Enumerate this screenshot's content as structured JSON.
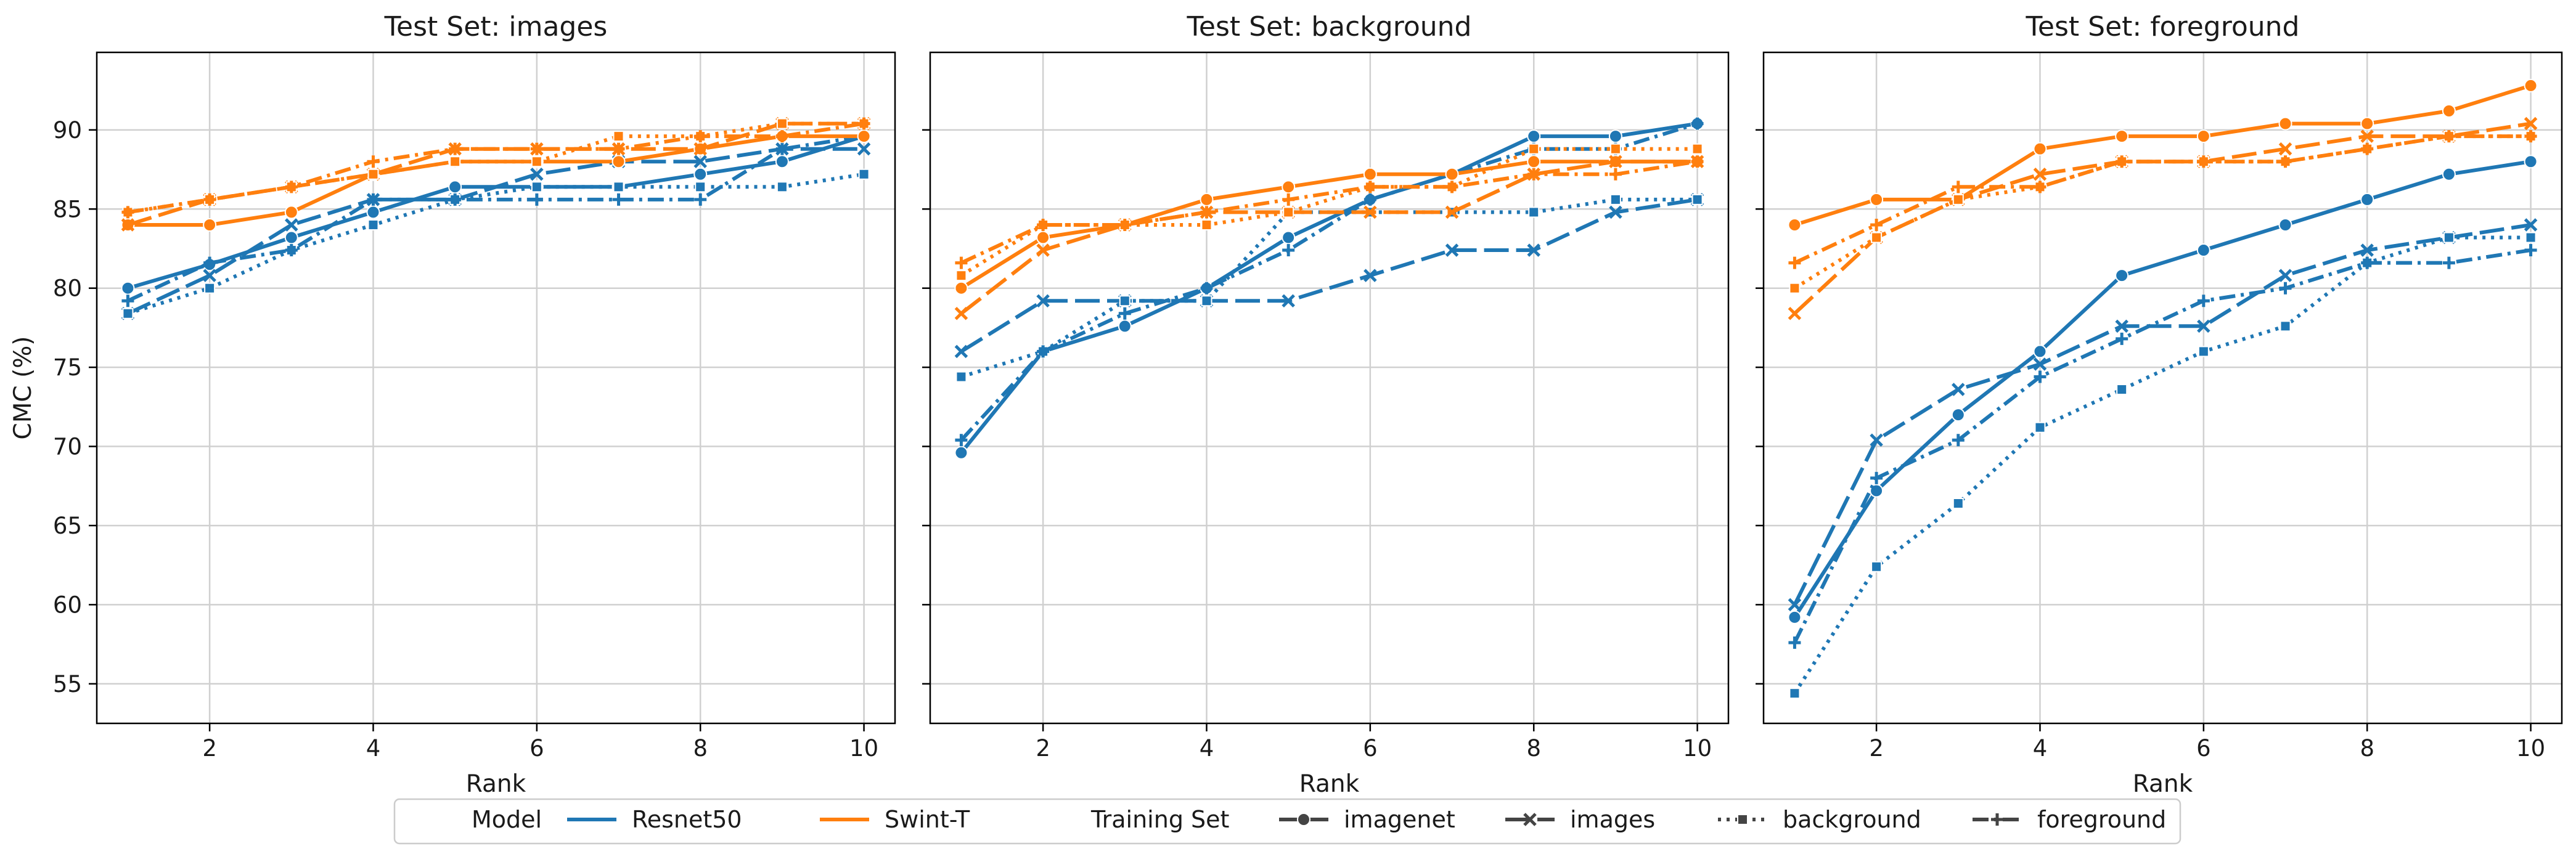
{
  "colors": {
    "Resnet50": "#1f77b4",
    "Swint-T": "#ff7f0e",
    "grid": "#d0d0d0",
    "axis": "#000000"
  },
  "chart_data": [
    {
      "type": "line",
      "title": "Test Set: images",
      "xlabel": "Rank",
      "ylabel": "CMC (%)",
      "x": [
        1,
        2,
        3,
        4,
        5,
        6,
        7,
        8,
        9,
        10
      ],
      "xticks": [
        2,
        4,
        6,
        8,
        10
      ],
      "yticks": [
        55,
        60,
        65,
        70,
        75,
        80,
        85,
        90
      ],
      "xlim": [
        0.62,
        10.38
      ],
      "ylim": [
        52.5,
        94.9
      ],
      "grid": true,
      "series": [
        {
          "model": "Resnet50",
          "training_set": "imagenet",
          "values": [
            80.0,
            81.5,
            83.2,
            84.8,
            86.4,
            86.4,
            86.4,
            87.2,
            88.0,
            89.6
          ]
        },
        {
          "model": "Resnet50",
          "training_set": "images",
          "values": [
            78.4,
            80.8,
            84.0,
            85.6,
            85.6,
            87.2,
            88.0,
            88.0,
            88.8,
            88.8
          ]
        },
        {
          "model": "Resnet50",
          "training_set": "background",
          "values": [
            78.4,
            80.0,
            82.4,
            84.0,
            85.6,
            86.4,
            86.4,
            86.4,
            86.4,
            87.2
          ]
        },
        {
          "model": "Resnet50",
          "training_set": "foreground",
          "values": [
            79.2,
            81.6,
            82.4,
            85.6,
            85.6,
            85.6,
            85.6,
            85.6,
            88.8,
            89.6
          ]
        },
        {
          "model": "Swint-T",
          "training_set": "imagenet",
          "values": [
            84.0,
            84.0,
            84.8,
            87.2,
            88.0,
            88.0,
            88.0,
            88.8,
            89.6,
            89.6
          ]
        },
        {
          "model": "Swint-T",
          "training_set": "images",
          "values": [
            84.0,
            85.6,
            86.4,
            87.2,
            88.8,
            88.8,
            88.8,
            88.8,
            90.4,
            90.4
          ]
        },
        {
          "model": "Swint-T",
          "training_set": "background",
          "values": [
            84.8,
            85.6,
            86.4,
            87.2,
            88.0,
            88.0,
            89.6,
            89.6,
            90.4,
            90.4
          ]
        },
        {
          "model": "Swint-T",
          "training_set": "foreground",
          "values": [
            84.8,
            85.6,
            86.4,
            88.0,
            88.8,
            88.8,
            88.8,
            89.6,
            89.6,
            90.4
          ]
        }
      ]
    },
    {
      "type": "line",
      "title": "Test Set: background",
      "xlabel": "Rank",
      "ylabel": "",
      "x": [
        1,
        2,
        3,
        4,
        5,
        6,
        7,
        8,
        9,
        10
      ],
      "xticks": [
        2,
        4,
        6,
        8,
        10
      ],
      "yticks": [
        55,
        60,
        65,
        70,
        75,
        80,
        85,
        90
      ],
      "xlim": [
        0.62,
        10.38
      ],
      "ylim": [
        52.5,
        94.9
      ],
      "grid": true,
      "series": [
        {
          "model": "Resnet50",
          "training_set": "imagenet",
          "values": [
            69.6,
            76.0,
            77.6,
            80.0,
            83.2,
            85.6,
            87.2,
            89.6,
            89.6,
            90.4
          ]
        },
        {
          "model": "Resnet50",
          "training_set": "images",
          "values": [
            76.0,
            79.2,
            79.2,
            79.2,
            79.2,
            80.8,
            82.4,
            82.4,
            84.8,
            85.6
          ]
        },
        {
          "model": "Resnet50",
          "training_set": "background",
          "values": [
            74.4,
            76.0,
            79.2,
            79.2,
            84.8,
            84.8,
            84.8,
            84.8,
            85.6,
            85.6
          ]
        },
        {
          "model": "Resnet50",
          "training_set": "foreground",
          "values": [
            70.4,
            76.0,
            78.4,
            80.0,
            82.4,
            85.6,
            87.2,
            88.8,
            88.8,
            90.4
          ]
        },
        {
          "model": "Swint-T",
          "training_set": "imagenet",
          "values": [
            80.0,
            83.2,
            84.0,
            85.6,
            86.4,
            87.2,
            87.2,
            88.0,
            88.0,
            88.0
          ]
        },
        {
          "model": "Swint-T",
          "training_set": "images",
          "values": [
            78.4,
            82.4,
            84.0,
            84.8,
            84.8,
            84.8,
            84.8,
            87.2,
            88.0,
            88.0
          ]
        },
        {
          "model": "Swint-T",
          "training_set": "background",
          "values": [
            80.8,
            84.0,
            84.0,
            84.0,
            84.8,
            86.4,
            86.4,
            88.8,
            88.8,
            88.8
          ]
        },
        {
          "model": "Swint-T",
          "training_set": "foreground",
          "values": [
            81.6,
            84.0,
            84.0,
            84.8,
            85.6,
            86.4,
            86.4,
            87.2,
            87.2,
            88.0
          ]
        }
      ]
    },
    {
      "type": "line",
      "title": "Test Set: foreground",
      "xlabel": "Rank",
      "ylabel": "",
      "x": [
        1,
        2,
        3,
        4,
        5,
        6,
        7,
        8,
        9,
        10
      ],
      "xticks": [
        2,
        4,
        6,
        8,
        10
      ],
      "yticks": [
        55,
        60,
        65,
        70,
        75,
        80,
        85,
        90
      ],
      "xlim": [
        0.62,
        10.38
      ],
      "ylim": [
        52.5,
        94.9
      ],
      "grid": true,
      "series": [
        {
          "model": "Resnet50",
          "training_set": "imagenet",
          "values": [
            59.2,
            67.2,
            72.0,
            76.0,
            80.8,
            82.4,
            84.0,
            85.6,
            87.2,
            88.0
          ]
        },
        {
          "model": "Resnet50",
          "training_set": "images",
          "values": [
            60.0,
            70.4,
            73.6,
            75.2,
            77.6,
            77.6,
            80.8,
            82.4,
            83.2,
            84.0
          ]
        },
        {
          "model": "Resnet50",
          "training_set": "background",
          "values": [
            54.4,
            62.4,
            66.4,
            71.2,
            73.6,
            76.0,
            77.6,
            81.6,
            83.2,
            83.2
          ]
        },
        {
          "model": "Resnet50",
          "training_set": "foreground",
          "values": [
            57.6,
            68.0,
            70.4,
            74.4,
            76.8,
            79.2,
            80.0,
            81.6,
            81.6,
            82.4
          ]
        },
        {
          "model": "Swint-T",
          "training_set": "imagenet",
          "values": [
            84.0,
            85.6,
            85.6,
            88.8,
            89.6,
            89.6,
            90.4,
            90.4,
            91.2,
            92.8
          ]
        },
        {
          "model": "Swint-T",
          "training_set": "images",
          "values": [
            78.4,
            83.2,
            85.6,
            87.2,
            88.0,
            88.0,
            88.8,
            89.6,
            89.6,
            90.4
          ]
        },
        {
          "model": "Swint-T",
          "training_set": "background",
          "values": [
            80.0,
            83.2,
            85.6,
            86.4,
            88.0,
            88.0,
            88.0,
            88.8,
            89.6,
            89.6
          ]
        },
        {
          "model": "Swint-T",
          "training_set": "foreground",
          "values": [
            81.6,
            84.0,
            86.4,
            86.4,
            88.0,
            88.0,
            88.0,
            88.8,
            89.6,
            89.6
          ]
        }
      ]
    }
  ],
  "legend": {
    "placement": "bottom-center",
    "model_header": "Model",
    "models": [
      "Resnet50",
      "Swint-T"
    ],
    "training_header": "Training Set",
    "training_sets": [
      "imagenet",
      "images",
      "background",
      "foreground"
    ]
  }
}
